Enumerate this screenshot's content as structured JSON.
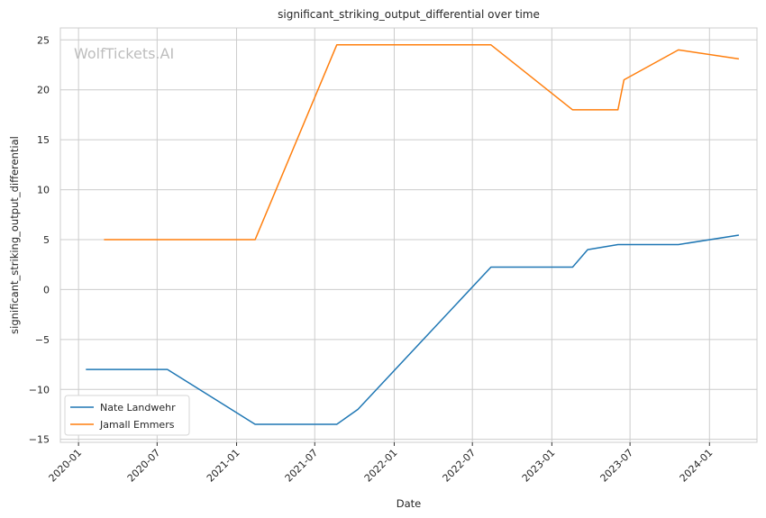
{
  "chart_data": {
    "type": "line",
    "title": "significant_striking_output_differential over time",
    "xlabel": "Date",
    "ylabel": "significant_striking_output_differential",
    "watermark": "WolfTickets.AI",
    "x_ticks": [
      "2020-01",
      "2020-07",
      "2021-01",
      "2021-07",
      "2022-01",
      "2022-07",
      "2023-01",
      "2023-07",
      "2024-01"
    ],
    "y_ticks": [
      -15,
      -10,
      -5,
      0,
      5,
      10,
      15,
      20,
      25
    ],
    "xlim": [
      "2019-11-20",
      "2024-04-20"
    ],
    "ylim": [
      -15.3,
      26.2
    ],
    "grid": true,
    "legend_position": "lower-left",
    "series": [
      {
        "name": "Nate Landwehr",
        "color": "#1f77b4",
        "points": [
          [
            "2020-01-18",
            -8.0
          ],
          [
            "2020-07-25",
            -8.0
          ],
          [
            "2021-02-13",
            -13.5
          ],
          [
            "2021-08-21",
            -13.5
          ],
          [
            "2021-10-09",
            -12.0
          ],
          [
            "2022-08-13",
            2.25
          ],
          [
            "2023-02-18",
            2.25
          ],
          [
            "2023-03-25",
            4.0
          ],
          [
            "2023-06-03",
            4.5
          ],
          [
            "2023-10-21",
            4.5
          ],
          [
            "2024-03-09",
            5.45
          ]
        ]
      },
      {
        "name": "Jamall Emmers",
        "color": "#ff7f0e",
        "points": [
          [
            "2020-02-29",
            5.0
          ],
          [
            "2021-02-13",
            5.0
          ],
          [
            "2021-08-21",
            24.5
          ],
          [
            "2022-08-13",
            24.5
          ],
          [
            "2023-02-18",
            18.0
          ],
          [
            "2023-06-03",
            18.0
          ],
          [
            "2023-06-17",
            21.0
          ],
          [
            "2023-10-21",
            24.0
          ],
          [
            "2024-03-09",
            23.1
          ]
        ]
      }
    ]
  }
}
